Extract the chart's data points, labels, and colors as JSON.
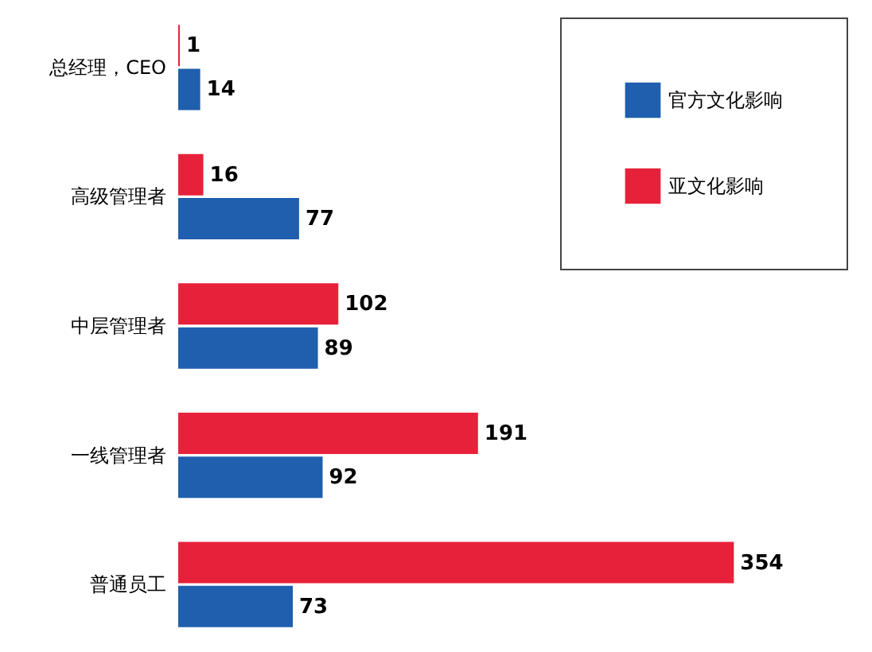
{
  "chart_data": {
    "type": "bar",
    "orientation": "horizontal",
    "data_labels": true,
    "legend": "top right",
    "categories": [
      "总经理，CEO",
      "高级管理者",
      "中层管理者",
      "一线管理者",
      "普通员工"
    ],
    "series": [
      {
        "name": "官方文化影响",
        "color": "#1f5fae",
        "values": [
          14,
          77,
          89,
          92,
          73
        ]
      },
      {
        "name": "亚文化影响",
        "color": "#e8213a",
        "values": [
          1,
          16,
          102,
          191,
          354
        ]
      }
    ]
  }
}
